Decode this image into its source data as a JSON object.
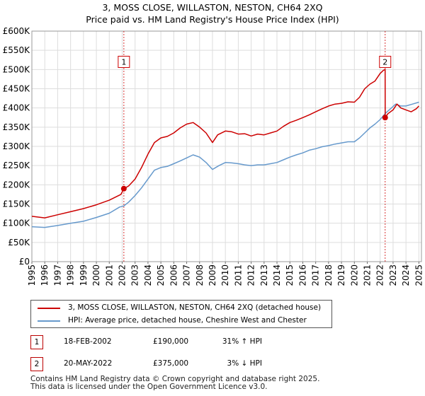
{
  "title_line1": "3, MOSS CLOSE, WILLASTON, NESTON, CH64 2XQ",
  "title_line2": "Price paid vs. HM Land Registry's House Price Index (HPI)",
  "colors": {
    "property": "#cc0000",
    "hpi": "#6699cc",
    "marker_border": "#cc0000",
    "vline": "#cc0000",
    "grid": "#dddddd"
  },
  "chart_data": {
    "type": "line",
    "title": "3, MOSS CLOSE, WILLASTON, NESTON, CH64 2XQ — Price paid vs. HM Land Registry's House Price Index (HPI)",
    "xlabel": "",
    "ylabel": "",
    "xlim": [
      1995,
      2025.2
    ],
    "ylim": [
      0,
      600000
    ],
    "grid": true,
    "x_ticks": [
      "1995",
      "1996",
      "1997",
      "1998",
      "1999",
      "2000",
      "2001",
      "2002",
      "2003",
      "2004",
      "2005",
      "2006",
      "2007",
      "2008",
      "2009",
      "2010",
      "2011",
      "2012",
      "2013",
      "2014",
      "2015",
      "2016",
      "2017",
      "2018",
      "2019",
      "2020",
      "2021",
      "2022",
      "2023",
      "2024",
      "2025"
    ],
    "y_ticks": [
      {
        "value": 0,
        "label": "£0"
      },
      {
        "value": 50000,
        "label": "£50K"
      },
      {
        "value": 100000,
        "label": "£100K"
      },
      {
        "value": 150000,
        "label": "£150K"
      },
      {
        "value": 200000,
        "label": "£200K"
      },
      {
        "value": 250000,
        "label": "£250K"
      },
      {
        "value": 300000,
        "label": "£300K"
      },
      {
        "value": 350000,
        "label": "£350K"
      },
      {
        "value": 400000,
        "label": "£400K"
      },
      {
        "value": 450000,
        "label": "£450K"
      },
      {
        "value": 500000,
        "label": "£500K"
      },
      {
        "value": 550000,
        "label": "£550K"
      },
      {
        "value": 600000,
        "label": "£600K"
      }
    ],
    "series": [
      {
        "name": "3, MOSS CLOSE, WILLASTON, NESTON, CH64 2XQ (detached house)",
        "color": "#cc0000",
        "points": [
          [
            1995.0,
            118000
          ],
          [
            1996.0,
            114000
          ],
          [
            1997.0,
            122000
          ],
          [
            1998.0,
            130000
          ],
          [
            1999.0,
            138000
          ],
          [
            2000.0,
            148000
          ],
          [
            2001.0,
            160000
          ],
          [
            2001.9,
            175000
          ],
          [
            2002.13,
            190000
          ],
          [
            2002.5,
            197000
          ],
          [
            2003.0,
            215000
          ],
          [
            2003.5,
            245000
          ],
          [
            2004.0,
            280000
          ],
          [
            2004.5,
            310000
          ],
          [
            2005.0,
            322000
          ],
          [
            2005.5,
            326000
          ],
          [
            2006.0,
            335000
          ],
          [
            2006.5,
            348000
          ],
          [
            2007.0,
            358000
          ],
          [
            2007.5,
            362000
          ],
          [
            2008.0,
            350000
          ],
          [
            2008.5,
            335000
          ],
          [
            2009.0,
            310000
          ],
          [
            2009.4,
            330000
          ],
          [
            2010.0,
            340000
          ],
          [
            2010.5,
            338000
          ],
          [
            2011.0,
            332000
          ],
          [
            2011.5,
            333000
          ],
          [
            2012.0,
            327000
          ],
          [
            2012.5,
            332000
          ],
          [
            2013.0,
            330000
          ],
          [
            2013.5,
            335000
          ],
          [
            2014.0,
            340000
          ],
          [
            2014.5,
            352000
          ],
          [
            2015.0,
            362000
          ],
          [
            2015.5,
            368000
          ],
          [
            2016.0,
            375000
          ],
          [
            2016.5,
            382000
          ],
          [
            2017.0,
            390000
          ],
          [
            2017.5,
            398000
          ],
          [
            2018.0,
            405000
          ],
          [
            2018.5,
            410000
          ],
          [
            2019.0,
            412000
          ],
          [
            2019.5,
            416000
          ],
          [
            2020.0,
            415000
          ],
          [
            2020.4,
            428000
          ],
          [
            2020.8,
            450000
          ],
          [
            2021.2,
            462000
          ],
          [
            2021.6,
            470000
          ],
          [
            2022.0,
            490000
          ],
          [
            2022.25,
            498000
          ],
          [
            2022.385,
            500000
          ],
          [
            2022.39,
            375000
          ],
          [
            2022.6,
            385000
          ],
          [
            2023.0,
            395000
          ],
          [
            2023.3,
            410000
          ],
          [
            2023.6,
            400000
          ],
          [
            2024.0,
            395000
          ],
          [
            2024.4,
            390000
          ],
          [
            2024.8,
            398000
          ],
          [
            2025.0,
            405000
          ]
        ]
      },
      {
        "name": "HPI: Average price, detached house, Cheshire West and Chester",
        "color": "#6699cc",
        "points": [
          [
            1995.0,
            91000
          ],
          [
            1996.0,
            89000
          ],
          [
            1997.0,
            94000
          ],
          [
            1998.0,
            100000
          ],
          [
            1999.0,
            105000
          ],
          [
            2000.0,
            115000
          ],
          [
            2001.0,
            126000
          ],
          [
            2001.8,
            142000
          ],
          [
            2002.13,
            145000
          ],
          [
            2002.5,
            155000
          ],
          [
            2003.0,
            172000
          ],
          [
            2003.5,
            192000
          ],
          [
            2004.0,
            215000
          ],
          [
            2004.5,
            238000
          ],
          [
            2005.0,
            245000
          ],
          [
            2005.5,
            248000
          ],
          [
            2006.0,
            255000
          ],
          [
            2006.5,
            262000
          ],
          [
            2007.0,
            270000
          ],
          [
            2007.5,
            278000
          ],
          [
            2008.0,
            272000
          ],
          [
            2008.5,
            258000
          ],
          [
            2009.0,
            240000
          ],
          [
            2009.5,
            250000
          ],
          [
            2010.0,
            258000
          ],
          [
            2010.5,
            257000
          ],
          [
            2011.0,
            255000
          ],
          [
            2011.5,
            252000
          ],
          [
            2012.0,
            250000
          ],
          [
            2012.5,
            252000
          ],
          [
            2013.0,
            252000
          ],
          [
            2013.5,
            255000
          ],
          [
            2014.0,
            258000
          ],
          [
            2014.5,
            265000
          ],
          [
            2015.0,
            272000
          ],
          [
            2015.5,
            278000
          ],
          [
            2016.0,
            283000
          ],
          [
            2016.5,
            290000
          ],
          [
            2017.0,
            294000
          ],
          [
            2017.5,
            299000
          ],
          [
            2018.0,
            302000
          ],
          [
            2018.5,
            306000
          ],
          [
            2019.0,
            309000
          ],
          [
            2019.5,
            312000
          ],
          [
            2020.0,
            312000
          ],
          [
            2020.4,
            322000
          ],
          [
            2020.8,
            335000
          ],
          [
            2021.2,
            348000
          ],
          [
            2021.6,
            358000
          ],
          [
            2022.0,
            370000
          ],
          [
            2022.4,
            386000
          ],
          [
            2022.8,
            398000
          ],
          [
            2023.2,
            410000
          ],
          [
            2023.6,
            405000
          ],
          [
            2024.0,
            405000
          ],
          [
            2024.5,
            410000
          ],
          [
            2025.0,
            415000
          ]
        ]
      }
    ],
    "markers": [
      {
        "label": "1",
        "x": 2002.13,
        "y": 190000,
        "box_y": 520000
      },
      {
        "label": "2",
        "x": 2022.385,
        "y": 375000,
        "box_y": 520000
      }
    ]
  },
  "legend": {
    "property_label": "3, MOSS CLOSE, WILLASTON, NESTON, CH64 2XQ (detached house)",
    "hpi_label": "HPI: Average price, detached house, Cheshire West and Chester"
  },
  "transactions": [
    {
      "num": "1",
      "date": "18-FEB-2002",
      "price": "£190,000",
      "hpi": "31% ↑ HPI"
    },
    {
      "num": "2",
      "date": "20-MAY-2022",
      "price": "£375,000",
      "hpi": "3% ↓ HPI"
    }
  ],
  "footer": {
    "line1": "Contains HM Land Registry data © Crown copyright and database right 2025.",
    "line2": "This data is licensed under the Open Government Licence v3.0."
  }
}
